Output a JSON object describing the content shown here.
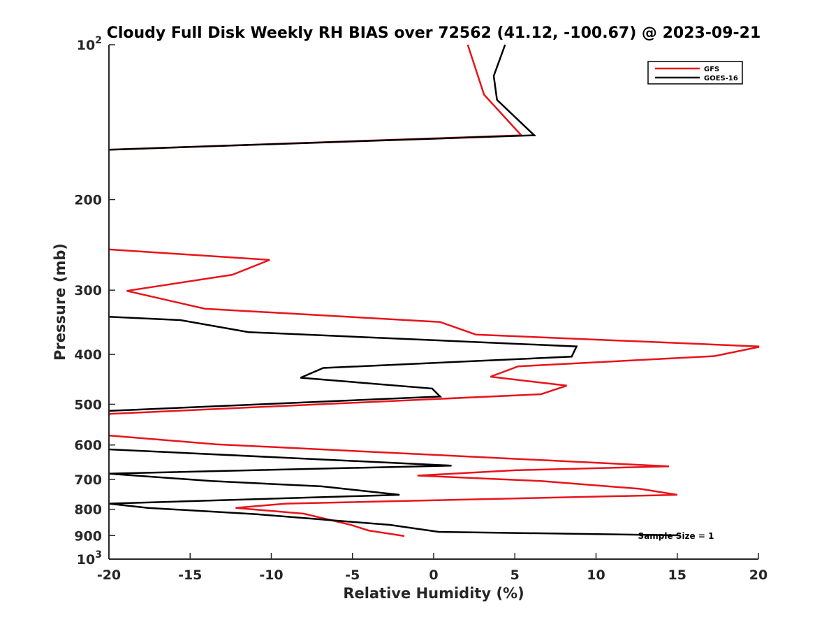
{
  "chart_data": {
    "type": "line",
    "title": "Cloudy Full Disk Weekly RH BIAS over 72562 (41.12, -100.67) @ 2023-09-21",
    "xlabel": "Relative Humidity (%)",
    "ylabel": "Pressure (mb)",
    "xlim": [
      -20,
      20
    ],
    "ylim": [
      100,
      1000
    ],
    "y_scale": "log",
    "y_reversed": true,
    "x_ticks": [
      -20,
      -15,
      -10,
      -5,
      0,
      5,
      10,
      15,
      20
    ],
    "x_tick_labels": [
      "-20",
      "-15",
      "-10",
      "-5",
      "0",
      "5",
      "10",
      "15",
      "20"
    ],
    "y_ticks": [
      100,
      200,
      300,
      400,
      500,
      600,
      700,
      800,
      900,
      1000
    ],
    "y_tick_labels": [
      {
        "value": 100,
        "base": "10",
        "exp": "2"
      },
      {
        "value": 200,
        "base": "200",
        "exp": ""
      },
      {
        "value": 300,
        "base": "300",
        "exp": ""
      },
      {
        "value": 400,
        "base": "400",
        "exp": ""
      },
      {
        "value": 500,
        "base": "500",
        "exp": ""
      },
      {
        "value": 600,
        "base": "600",
        "exp": ""
      },
      {
        "value": 700,
        "base": "700",
        "exp": ""
      },
      {
        "value": 800,
        "base": "800",
        "exp": ""
      },
      {
        "value": 900,
        "base": "900",
        "exp": ""
      },
      {
        "value": 1000,
        "base": "10",
        "exp": "3"
      }
    ],
    "grid": false,
    "legend_position": "top-right",
    "annotation": "Sample Size = 1",
    "series": [
      {
        "name": "GFS",
        "color": "#e8141b",
        "segments": [
          [
            [
              2.1,
              100
            ],
            [
              3.1,
              125
            ],
            [
              5.4,
              150
            ],
            [
              -20,
              160
            ]
          ],
          [
            [
              -20,
              250
            ],
            [
              -10.1,
              262
            ],
            [
              -12.4,
              280
            ],
            [
              -18.9,
              301
            ],
            [
              -14.1,
              326
            ],
            [
              0.4,
              346
            ],
            [
              2.6,
              366
            ],
            [
              20,
              386
            ],
            [
              20,
              387
            ],
            [
              17.3,
              403
            ],
            [
              5.2,
              422
            ],
            [
              3.5,
              442
            ],
            [
              8.2,
              460
            ],
            [
              6.6,
              478
            ],
            [
              -20,
              522
            ]
          ],
          [
            [
              -20,
              575
            ],
            [
              -13.4,
              598
            ],
            [
              14.5,
              660
            ],
            [
              5,
              672
            ],
            [
              -1,
              688
            ],
            [
              6.6,
              705
            ],
            [
              12.7,
              730
            ],
            [
              15,
              750
            ],
            [
              -9.1,
              780
            ],
            [
              -12.2,
              795
            ],
            [
              -8,
              816
            ],
            [
              -5.1,
              858
            ],
            [
              -4,
              880
            ],
            [
              -1.8,
              902
            ]
          ]
        ]
      },
      {
        "name": "GOES-16",
        "color": "#000000",
        "segments": [
          [
            [
              4.4,
              100
            ],
            [
              3.7,
              115
            ],
            [
              3.9,
              128
            ],
            [
              6.2,
              150
            ],
            [
              -20,
              160
            ]
          ],
          [
            [
              -20,
              338
            ],
            [
              -15.6,
              343
            ],
            [
              -11.4,
              362
            ],
            [
              8.8,
              386
            ],
            [
              8.5,
              404
            ],
            [
              -6.8,
              425
            ],
            [
              -8.2,
              444
            ],
            [
              -0.1,
              466
            ],
            [
              0.4,
              483
            ],
            [
              -20,
              515
            ]
          ],
          [
            [
              -20,
              612
            ],
            [
              1.1,
              658
            ],
            [
              -20,
              682
            ],
            [
              -13.7,
              705
            ],
            [
              -6.9,
              722
            ],
            [
              -2.1,
              750
            ],
            [
              -20,
              780
            ],
            [
              -17.6,
              795
            ],
            [
              -10.9,
              818
            ],
            [
              -2.7,
              858
            ],
            [
              0.3,
              885
            ],
            [
              15.2,
              899
            ]
          ]
        ]
      }
    ]
  }
}
